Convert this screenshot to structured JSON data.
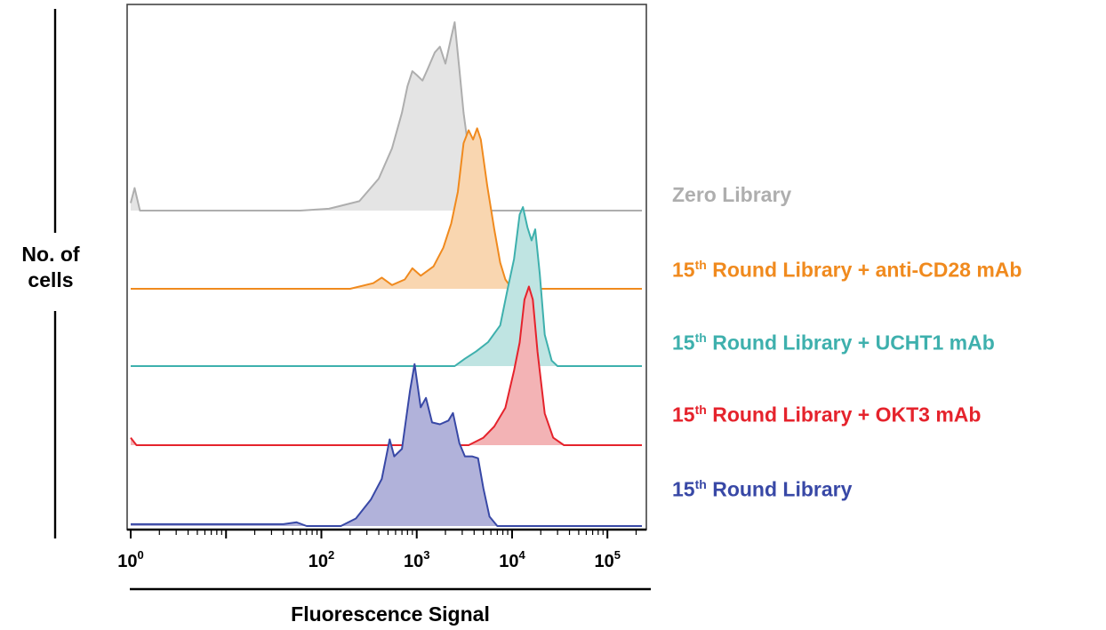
{
  "chart_data": {
    "type": "area",
    "xlabel": "Fluorescence Signal",
    "ylabel": "No. of cells",
    "xscale": "log",
    "xlim": [
      1,
      230000
    ],
    "x_ticks": [
      {
        "base": "10",
        "exp": "0",
        "value": 1
      },
      {
        "base": "10",
        "exp": "2",
        "value": 100
      },
      {
        "base": "10",
        "exp": "3",
        "value": 1000
      },
      {
        "base": "10",
        "exp": "4",
        "value": 10000
      },
      {
        "base": "10",
        "exp": "5",
        "value": 100000
      }
    ],
    "legend_position": "right",
    "grid": false,
    "series": [
      {
        "name": "Zero Library",
        "color": "#aeaeae",
        "fill": "#e4e4e4",
        "points": [
          [
            1,
            0.04
          ],
          [
            1.1,
            0.12
          ],
          [
            1.25,
            0.0
          ],
          [
            60,
            0.0
          ],
          [
            120,
            0.01
          ],
          [
            250,
            0.05
          ],
          [
            400,
            0.17
          ],
          [
            550,
            0.33
          ],
          [
            700,
            0.52
          ],
          [
            800,
            0.66
          ],
          [
            900,
            0.74
          ],
          [
            1000,
            0.72
          ],
          [
            1150,
            0.69
          ],
          [
            1300,
            0.75
          ],
          [
            1550,
            0.84
          ],
          [
            1750,
            0.87
          ],
          [
            2000,
            0.78
          ],
          [
            2300,
            0.92
          ],
          [
            2500,
            1.0
          ],
          [
            2800,
            0.75
          ],
          [
            3100,
            0.52
          ],
          [
            3500,
            0.32
          ],
          [
            4000,
            0.0
          ],
          [
            230000,
            0.0
          ]
        ]
      },
      {
        "name": "Round Library + anti-CD28 mAb",
        "name_sup": "th",
        "name_prefix": "15",
        "color": "#f08a1e",
        "fill": "#f9d6b0",
        "points": [
          [
            1,
            0.0
          ],
          [
            200,
            0.0
          ],
          [
            350,
            0.03
          ],
          [
            430,
            0.06
          ],
          [
            550,
            0.02
          ],
          [
            750,
            0.05
          ],
          [
            900,
            0.11
          ],
          [
            1100,
            0.07
          ],
          [
            1500,
            0.12
          ],
          [
            1900,
            0.22
          ],
          [
            2300,
            0.35
          ],
          [
            2700,
            0.52
          ],
          [
            3100,
            0.78
          ],
          [
            3500,
            0.85
          ],
          [
            3900,
            0.8
          ],
          [
            4300,
            0.86
          ],
          [
            4700,
            0.8
          ],
          [
            5500,
            0.55
          ],
          [
            6500,
            0.32
          ],
          [
            7500,
            0.14
          ],
          [
            8500,
            0.05
          ],
          [
            10000,
            0.0
          ],
          [
            230000,
            0.0
          ]
        ]
      },
      {
        "name": "Round Library + UCHT1 mAb",
        "name_sup": "th",
        "name_prefix": "15",
        "color": "#3eb0ad",
        "fill": "#bfe4e2",
        "points": [
          [
            1,
            0.0
          ],
          [
            2500,
            0.0
          ],
          [
            3200,
            0.04
          ],
          [
            4200,
            0.08
          ],
          [
            5600,
            0.13
          ],
          [
            7500,
            0.22
          ],
          [
            9000,
            0.42
          ],
          [
            10500,
            0.58
          ],
          [
            12000,
            0.82
          ],
          [
            13000,
            0.86
          ],
          [
            14500,
            0.75
          ],
          [
            16000,
            0.68
          ],
          [
            17500,
            0.74
          ],
          [
            19500,
            0.5
          ],
          [
            22000,
            0.17
          ],
          [
            26000,
            0.03
          ],
          [
            30000,
            0.0
          ],
          [
            230000,
            0.0
          ]
        ]
      },
      {
        "name": "Round Library + OKT3 mAb",
        "name_sup": "th",
        "name_prefix": "15",
        "color": "#e5232c",
        "fill": "#f3b3b5",
        "points": [
          [
            1,
            0.04
          ],
          [
            1.15,
            0.0
          ],
          [
            3500,
            0.0
          ],
          [
            5000,
            0.04
          ],
          [
            6500,
            0.1
          ],
          [
            8500,
            0.2
          ],
          [
            10500,
            0.4
          ],
          [
            12000,
            0.55
          ],
          [
            13500,
            0.78
          ],
          [
            15000,
            0.85
          ],
          [
            16500,
            0.78
          ],
          [
            18500,
            0.5
          ],
          [
            22000,
            0.17
          ],
          [
            27000,
            0.04
          ],
          [
            35000,
            0.0
          ],
          [
            230000,
            0.0
          ]
        ]
      },
      {
        "name": "Round Library",
        "name_sup": "th",
        "name_prefix": "15",
        "color": "#3848a6",
        "fill": "#b1b2da",
        "points": [
          [
            1,
            0.01
          ],
          [
            40,
            0.01
          ],
          [
            55,
            0.02
          ],
          [
            70,
            0.0
          ],
          [
            160,
            0.0
          ],
          [
            230,
            0.04
          ],
          [
            330,
            0.14
          ],
          [
            430,
            0.25
          ],
          [
            520,
            0.46
          ],
          [
            580,
            0.37
          ],
          [
            700,
            0.41
          ],
          [
            850,
            0.72
          ],
          [
            950,
            0.86
          ],
          [
            1100,
            0.63
          ],
          [
            1250,
            0.68
          ],
          [
            1450,
            0.55
          ],
          [
            1750,
            0.54
          ],
          [
            2150,
            0.56
          ],
          [
            2400,
            0.6
          ],
          [
            2800,
            0.44
          ],
          [
            3200,
            0.37
          ],
          [
            3800,
            0.37
          ],
          [
            4400,
            0.36
          ],
          [
            5000,
            0.2
          ],
          [
            5800,
            0.05
          ],
          [
            7000,
            0.0
          ],
          [
            230000,
            0.0
          ]
        ]
      }
    ]
  }
}
